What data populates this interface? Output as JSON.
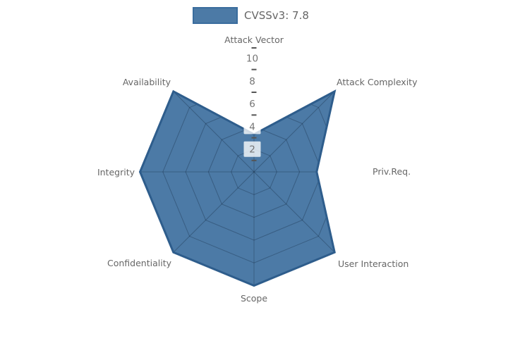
{
  "chart_data": {
    "type": "radar",
    "legend": {
      "label": "CVSSv3: 7.8"
    },
    "axes": [
      "Attack Vector",
      "Attack Complexity",
      "Priv.Req.",
      "User Interaction",
      "Scope",
      "Confidentiality",
      "Integrity",
      "Availability"
    ],
    "series": [
      {
        "name": "CVSSv3: 7.8",
        "values": [
          3.3,
          10,
          5.5,
          10,
          10,
          10,
          10,
          10
        ]
      }
    ],
    "r_ticks": [
      "2",
      "4",
      "6",
      "8",
      "10"
    ],
    "r_tick_values": [
      2,
      4,
      6,
      8,
      10
    ],
    "r_max": 10,
    "grid": "spider-web, visible only over filled area",
    "legend_position": "top-center",
    "colors": {
      "fill": "#4c7aa6",
      "edge": "#2e5d8c",
      "grid_line": "rgba(10,25,45,0.30)",
      "axis_label_text": "#666666",
      "tick_text": "#757575",
      "tick_box_bg": "rgba(255,255,255,0.78)",
      "minor_tick_dash": "#555555",
      "legend_text": "#666666",
      "background": "#ffffff"
    }
  }
}
